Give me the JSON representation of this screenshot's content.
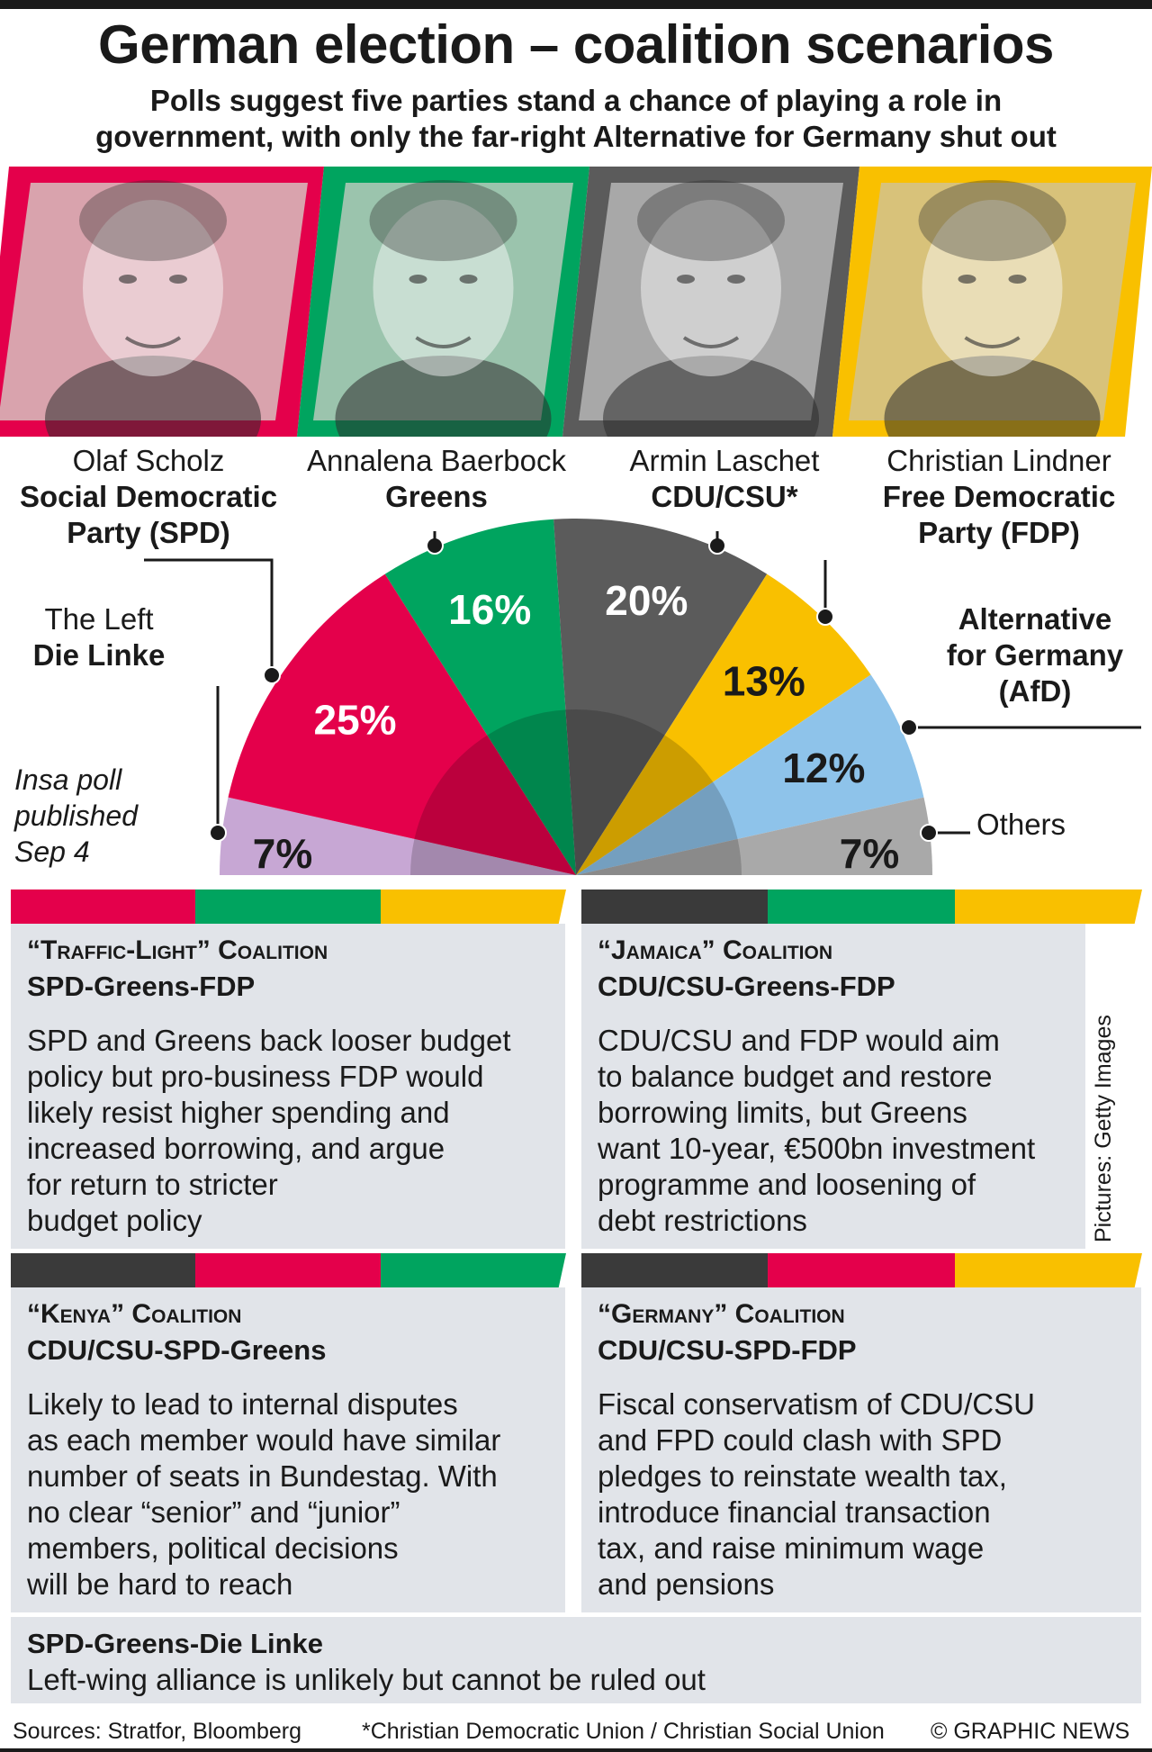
{
  "header": {
    "title": "German election – coalition scenarios",
    "subtitle_line1": "Polls suggest five parties stand a chance of playing a role in",
    "subtitle_line2": "government, with only the far-right Alternative for Germany shut out"
  },
  "colors": {
    "spd": "#e4004b",
    "greens": "#00a45f",
    "cdu": "#5b5b5b",
    "cdu_dark": "#3a3a3a",
    "fdp": "#f9c000",
    "afd": "#8ec3ea",
    "left": "#c7a7d4",
    "others": "#a9a9a9",
    "panel": "#e1e4e9"
  },
  "candidates": [
    {
      "name": "Olaf Scholz",
      "party_line1": "Social Democratic",
      "party_line2": "Party (SPD)",
      "color": "#e4004b",
      "photo_tint": "#d9a3ad"
    },
    {
      "name": "Annalena Baerbock",
      "party_line1": "Greens",
      "party_line2": "",
      "color": "#00a45f",
      "photo_tint": "#9bc4ad"
    },
    {
      "name": "Armin Laschet",
      "party_line1": "CDU/CSU*",
      "party_line2": "",
      "color": "#5b5b5b",
      "photo_tint": "#a8a8a8"
    },
    {
      "name": "Christian Lindner",
      "party_line1": "Free Democratic",
      "party_line2": "Party (FDP)",
      "color": "#f9c000",
      "photo_tint": "#d8c27a"
    }
  ],
  "chart_data": {
    "type": "pie",
    "subtype": "semicircle",
    "title": "Insa poll published Sep 4",
    "categories": [
      "Die Linke",
      "SPD",
      "Greens",
      "CDU/CSU",
      "FDP",
      "AfD",
      "Others"
    ],
    "values": [
      7,
      25,
      16,
      20,
      13,
      12,
      7
    ],
    "labels": [
      "7%",
      "25%",
      "16%",
      "20%",
      "13%",
      "12%",
      "7%"
    ],
    "colors": [
      "#c7a7d4",
      "#e4004b",
      "#00a45f",
      "#5b5b5b",
      "#f9c000",
      "#8ec3ea",
      "#a9a9a9"
    ],
    "label_colors": [
      "#1a1a1a",
      "#ffffff",
      "#ffffff",
      "#ffffff",
      "#1a1a1a",
      "#1a1a1a",
      "#1a1a1a"
    ],
    "callouts": {
      "left_line1": "The Left",
      "left_line2": "Die Linke",
      "afd_line1": "Alternative",
      "afd_line2": "for Germany",
      "afd_line3": "(AfD)",
      "others": "Others"
    },
    "note_line1": "Insa poll",
    "note_line2": "published",
    "note_line3": "Sep 4"
  },
  "coalitions": [
    {
      "title_line1": "“Traffic-Light” Coalition",
      "title_line2": "SPD-Greens-FDP",
      "stripes": [
        "#e4004b",
        "#00a45f",
        "#f9c000"
      ],
      "body": [
        "SPD and Greens back looser budget",
        "policy but pro-business FDP would",
        "likely resist higher spending and",
        "increased borrowing, and argue",
        "for return to stricter",
        "budget policy"
      ]
    },
    {
      "title_line1": "“Jamaica” Coalition",
      "title_line2": "CDU/CSU-Greens-FDP",
      "stripes": [
        "#3a3a3a",
        "#00a45f",
        "#f9c000"
      ],
      "body": [
        "CDU/CSU and FDP would aim",
        "to balance budget and restore",
        "borrowing limits, but Greens",
        "want 10-year, €500bn investment",
        "programme and loosening of",
        "debt restrictions"
      ]
    },
    {
      "title_line1": "“Kenya” Coalition",
      "title_line2": "CDU/CSU-SPD-Greens",
      "stripes": [
        "#3a3a3a",
        "#e4004b",
        "#00a45f"
      ],
      "body": [
        "Likely to lead to internal disputes",
        "as each member would have similar",
        "number of seats in Bundestag. With",
        "no clear “senior” and “junior”",
        "members, political decisions",
        "will be hard to reach"
      ]
    },
    {
      "title_line1": "“Germany” Coalition",
      "title_line2": "CDU/CSU-SPD-FDP",
      "stripes": [
        "#3a3a3a",
        "#e4004b",
        "#f9c000"
      ],
      "body": [
        "Fiscal conservatism of CDU/CSU",
        "and FPD could clash with SPD",
        "pledges to reinstate wealth tax,",
        "introduce financial transaction",
        "tax, and raise minimum wage",
        "and pensions"
      ]
    }
  ],
  "left_alliance": {
    "title": "SPD-Greens-Die Linke",
    "body": "Left-wing alliance is unlikely but cannot be ruled out",
    "stripes": [
      "#e4004b",
      "#00a45f",
      "#c7a7d4"
    ]
  },
  "credit": "Pictures: Getty Images",
  "footer": {
    "sources": "Sources: Stratfor, Bloomberg",
    "footnote": "*Christian Democratic Union / Christian Social Union",
    "copyright": "© GRAPHIC NEWS"
  }
}
